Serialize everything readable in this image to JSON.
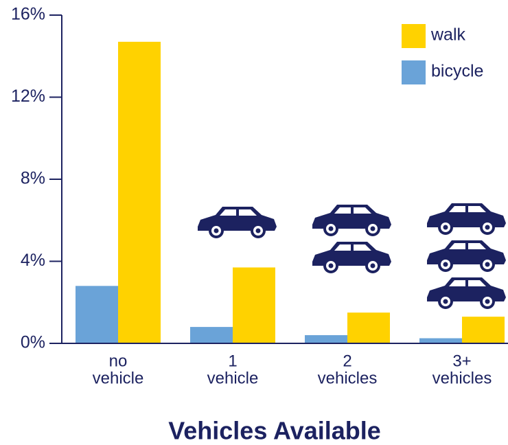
{
  "chart_data": {
    "type": "bar",
    "x_label": "Vehicles Available",
    "categories": [
      [
        "no",
        "vehicle"
      ],
      [
        "1",
        "vehicle"
      ],
      [
        "2",
        "vehicles"
      ],
      [
        "3+",
        "vehicles"
      ]
    ],
    "series": [
      {
        "name": "bicycle",
        "color": "#6aa3d8",
        "values": [
          2.8,
          0.8,
          0.4,
          0.25
        ]
      },
      {
        "name": "walk",
        "color": "#ffd200",
        "values": [
          14.7,
          3.7,
          1.5,
          1.3
        ]
      }
    ],
    "ylim": [
      0,
      16
    ],
    "yticks": [
      {
        "value": 0,
        "label": "0%"
      },
      {
        "value": 4,
        "label": "4%"
      },
      {
        "value": 8,
        "label": "8%"
      },
      {
        "value": 12,
        "label": "12%"
      },
      {
        "value": 16,
        "label": "16%"
      }
    ],
    "legend": "top-right"
  }
}
